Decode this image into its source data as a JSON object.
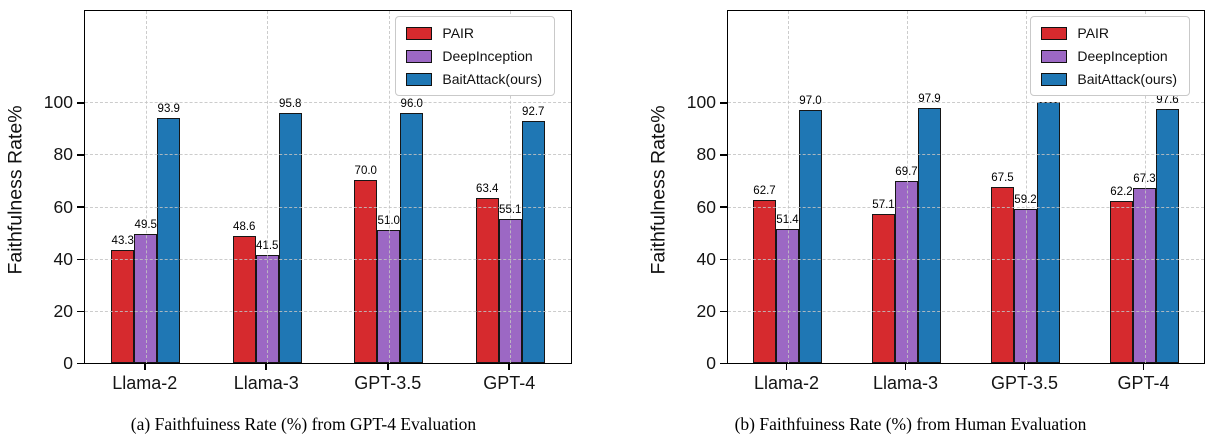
{
  "chart_data": [
    {
      "type": "bar",
      "caption": "(a) Faithfuiness Rate (%) from GPT-4 Evaluation",
      "ylabel": "Faithfulness Rate%",
      "categories": [
        "Llama-2",
        "Llama-3",
        "GPT-3.5",
        "GPT-4"
      ],
      "series": [
        {
          "name": "PAIR",
          "color": "#d62a2e",
          "values": [
            43.3,
            48.6,
            70.0,
            63.4
          ],
          "labels": [
            "43.3",
            "48.6",
            "70.0",
            "63.4"
          ]
        },
        {
          "name": "DeepInception",
          "color": "#9c68c4",
          "values": [
            49.5,
            41.5,
            51.0,
            55.1
          ],
          "labels": [
            "49.5",
            "41.5",
            "51.0",
            "55.1"
          ]
        },
        {
          "name": "BaitAttack(ours)",
          "color": "#1f77b4",
          "values": [
            93.9,
            95.8,
            96.0,
            92.7
          ],
          "labels": [
            "93.9",
            "95.8",
            "96.0",
            "92.7"
          ]
        }
      ],
      "yticks": [
        0,
        20,
        40,
        60,
        80,
        100
      ],
      "ylim": [
        0,
        135
      ],
      "grid": true,
      "legend_position": "top-right"
    },
    {
      "type": "bar",
      "caption": "(b) Faithfuiness Rate (%) from Human Evaluation",
      "ylabel": "Faithfulness Rate%",
      "categories": [
        "Llama-2",
        "Llama-3",
        "GPT-3.5",
        "GPT-4"
      ],
      "series": [
        {
          "name": "PAIR",
          "color": "#d62a2e",
          "values": [
            62.7,
            57.1,
            67.5,
            62.2
          ],
          "labels": [
            "62.7",
            "57.1",
            "67.5",
            "62.2"
          ]
        },
        {
          "name": "DeepInception",
          "color": "#9c68c4",
          "values": [
            51.4,
            69.7,
            59.2,
            67.3
          ],
          "labels": [
            "51.4",
            "69.7",
            "59.2",
            "67.3"
          ]
        },
        {
          "name": "BaitAttack(ours)",
          "color": "#1f77b4",
          "values": [
            97.0,
            97.9,
            100,
            97.6
          ],
          "labels": [
            "97.0",
            "97.9",
            "100",
            "97.6"
          ]
        }
      ],
      "yticks": [
        0,
        20,
        40,
        60,
        80,
        100
      ],
      "ylim": [
        0,
        135
      ],
      "grid": true,
      "legend_position": "top-right"
    }
  ]
}
